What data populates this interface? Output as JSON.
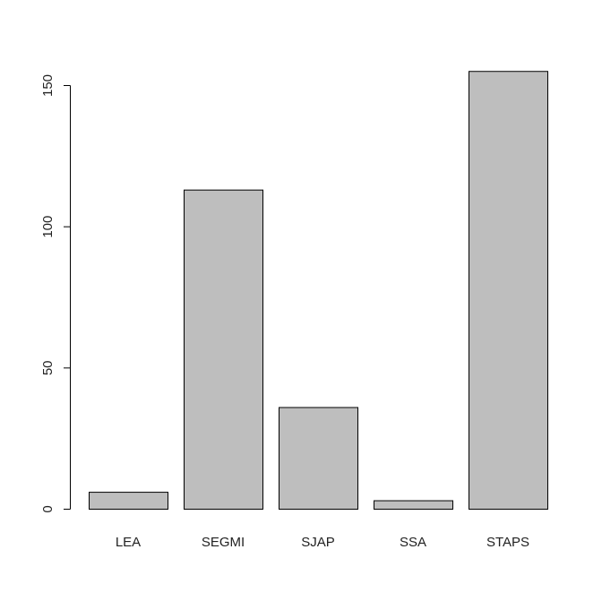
{
  "chart_data": {
    "type": "bar",
    "categories": [
      "LEA",
      "SEGMI",
      "SJAP",
      "SSA",
      "STAPS"
    ],
    "values": [
      6,
      113,
      36,
      3,
      155
    ],
    "title": "",
    "xlabel": "",
    "ylabel": "",
    "ylim": [
      0,
      160
    ],
    "yticks": [
      0,
      50,
      100,
      150
    ],
    "ytick_labels": [
      "0",
      "50",
      "100",
      "150"
    ],
    "grid": false,
    "legend": "none",
    "colors": {
      "bar_fill": "#bebebe",
      "bar_stroke": "#000000",
      "axis": "#000000",
      "text": "#222222"
    }
  }
}
